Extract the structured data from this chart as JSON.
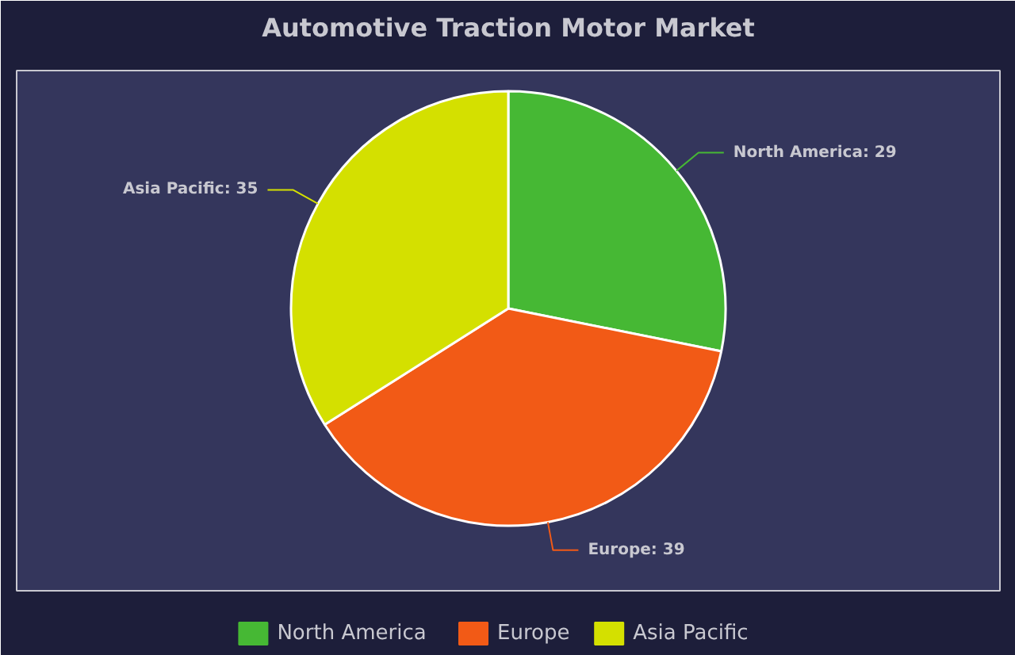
{
  "chart_data": {
    "type": "pie",
    "title": "Automotive Traction Motor Market",
    "categories": [
      "North America",
      "Europe",
      "Asia Pacific"
    ],
    "values": [
      29,
      39,
      35
    ],
    "colors": [
      "#46b834",
      "#f25a16",
      "#d4e000"
    ],
    "value_labels": [
      "North America: 29",
      "Europe: 39",
      "Asia Pacific: 35"
    ],
    "legend": "bottom"
  }
}
